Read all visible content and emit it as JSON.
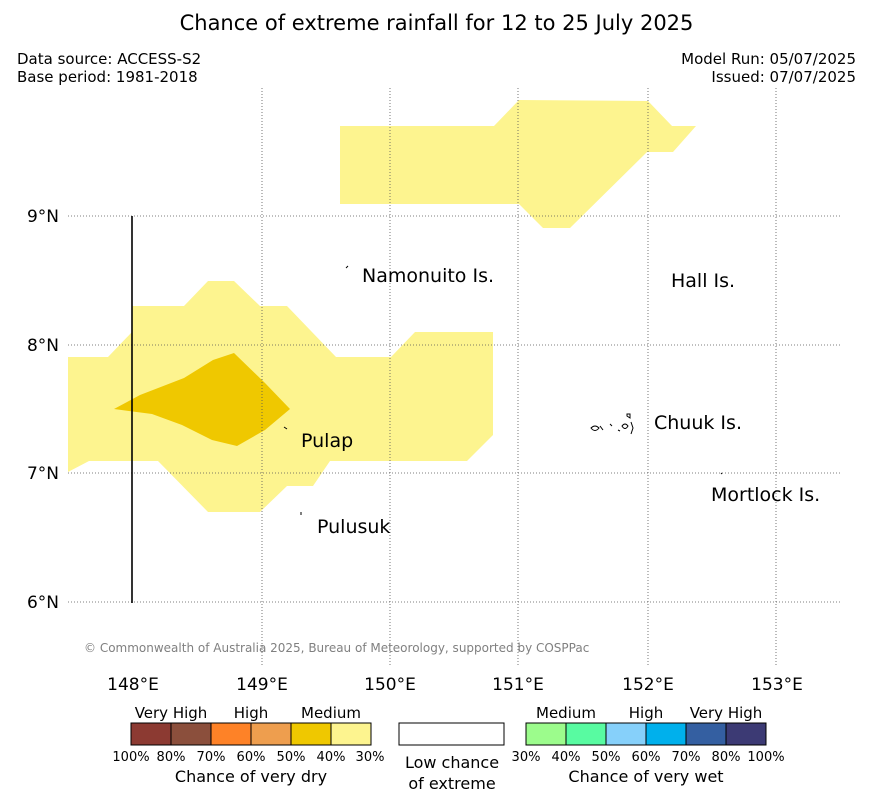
{
  "header": {
    "title": "Chance of extreme rainfall for 12 to 25 July 2025",
    "data_source": "Data source: ACCESS-S2",
    "base_period": "Base period: 1981-2018",
    "model_run": "Model Run: 05/07/2025",
    "issued": "Issued: 07/07/2025"
  },
  "map": {
    "lat_labels": [
      "9°N",
      "8°N",
      "7°N",
      "6°N"
    ],
    "lon_labels": [
      "148°E",
      "149°E",
      "150°E",
      "151°E",
      "152°E",
      "153°E"
    ],
    "places": [
      "Namonuito Is.",
      "Hall Is.",
      "Pulap",
      "Chuuk Is.",
      "Pulusuk",
      "Mortlock Is."
    ],
    "copyright": "© Commonwealth of Australia 2025, Bureau of Meteorology, supported by COSPPac",
    "shading": [
      {
        "category": "Medium (wet-dry 30-40%)",
        "color": "#fdf48f"
      },
      {
        "category": "Medium (40-50%)",
        "color": "#efc800"
      }
    ]
  },
  "legend": {
    "dry": {
      "categories": [
        "Very High",
        "High",
        "Medium"
      ],
      "colors": [
        "#8c3a32",
        "#8b4f3c",
        "#fe8227",
        "#ee9e4e",
        "#efc800",
        "#fdf48f"
      ],
      "ticks": [
        "100%",
        "80%",
        "70%",
        "60%",
        "50%",
        "40%",
        "30%"
      ],
      "caption": "Chance of very dry"
    },
    "low": {
      "line1": "Low chance",
      "line2": "of extreme"
    },
    "wet": {
      "categories": [
        "Medium",
        "High",
        "Very High"
      ],
      "colors": [
        "#9cfc8c",
        "#58fba1",
        "#86d0fa",
        "#00b0ec",
        "#345fa1",
        "#3c3a74"
      ],
      "ticks": [
        "30%",
        "40%",
        "50%",
        "60%",
        "70%",
        "80%",
        "100%"
      ],
      "caption": "Chance of very wet"
    }
  }
}
